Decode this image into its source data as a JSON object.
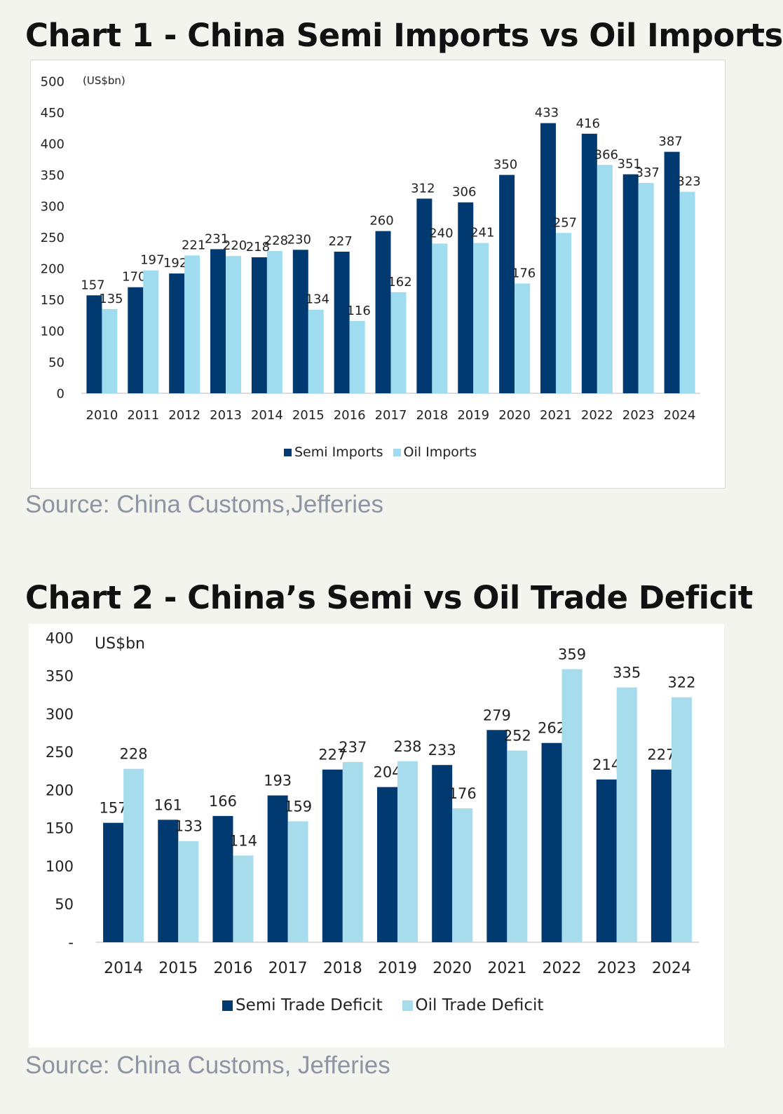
{
  "charts": [
    {
      "heading": "Chart 1 - China Semi Imports vs Oil Imports",
      "source": "Source: China Customs,Jefferies",
      "unit": "(US$bn)",
      "chart_data": {
        "type": "bar",
        "categories": [
          "2010",
          "2011",
          "2012",
          "2013",
          "2014",
          "2015",
          "2016",
          "2017",
          "2018",
          "2019",
          "2020",
          "2021",
          "2022",
          "2023",
          "2024"
        ],
        "series": [
          {
            "name": "Semi Imports",
            "color": "#003a70",
            "values": [
              157,
              170,
              192,
              231,
              218,
              230,
              227,
              260,
              312,
              306,
              350,
              433,
              416,
              351,
              387
            ]
          },
          {
            "name": "Oil Imports",
            "color": "#9fdcef",
            "values": [
              135,
              197,
              221,
              220,
              228,
              134,
              116,
              162,
              240,
              241,
              176,
              257,
              366,
              337,
              323
            ]
          }
        ],
        "yticks": [
          0,
          50,
          100,
          150,
          200,
          250,
          300,
          350,
          400,
          450,
          500
        ],
        "ytick_labels": [
          "0",
          "50",
          "100",
          "150",
          "200",
          "250",
          "300",
          "350",
          "400",
          "450",
          "500"
        ],
        "ylim": [
          0,
          500
        ],
        "legend": "bottom",
        "grid": false
      }
    },
    {
      "heading": "Chart 2 - China’s Semi vs Oil Trade Deficit",
      "source": "Source: China Customs, Jefferies",
      "unit": "US$bn",
      "chart_data": {
        "type": "bar",
        "categories": [
          "2014",
          "2015",
          "2016",
          "2017",
          "2018",
          "2019",
          "2020",
          "2021",
          "2022",
          "2023",
          "2024"
        ],
        "series": [
          {
            "name": "Semi Trade Deficit",
            "color": "#003a70",
            "values": [
              157,
              161,
              166,
              193,
              227,
              204,
              233,
              279,
              262,
              214,
              227
            ]
          },
          {
            "name": "Oil Trade Deficit",
            "color": "#a6dcec",
            "values": [
              228,
              133,
              114,
              159,
              237,
              238,
              176,
              252,
              359,
              335,
              322
            ]
          }
        ],
        "yticks": [
          0,
          50,
          100,
          150,
          200,
          250,
          300,
          350,
          400
        ],
        "ytick_labels": [
          "-",
          "50",
          "100",
          "150",
          "200",
          "250",
          "300",
          "350",
          "400"
        ],
        "ylim": [
          0,
          400
        ],
        "legend": "bottom",
        "grid": false
      }
    }
  ]
}
